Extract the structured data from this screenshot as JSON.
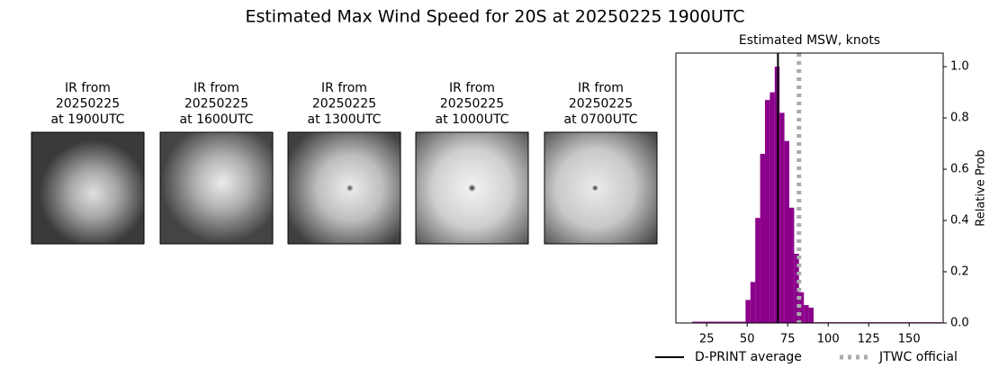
{
  "title": "Estimated Max Wind Speed for 20S at 20250225 1900UTC",
  "panels": [
    {
      "lines": [
        "IR from",
        "20250225",
        "at 1900UTC"
      ]
    },
    {
      "lines": [
        "IR from",
        "20250225",
        "at 1600UTC"
      ]
    },
    {
      "lines": [
        "IR from",
        "20250225",
        "at 1300UTC"
      ]
    },
    {
      "lines": [
        "IR from",
        "20250225",
        "at 1000UTC"
      ]
    },
    {
      "lines": [
        "IR from",
        "20250225",
        "at 0700UTC"
      ]
    }
  ],
  "chart_data": {
    "type": "histogram",
    "title": "Estimated MSW, knots",
    "y_label": "Relative Prob",
    "y_axis_side": "right",
    "color": "#8b008b",
    "bins": [
      16,
      49,
      52,
      55,
      58,
      61,
      64,
      67,
      70,
      73,
      76,
      79,
      82,
      85,
      88,
      91,
      170
    ],
    "values": [
      0.005,
      0.09,
      0.16,
      0.41,
      0.66,
      0.87,
      0.9,
      1.0,
      0.82,
      0.71,
      0.45,
      0.27,
      0.12,
      0.07,
      0.06,
      0.003
    ],
    "xlim": [
      6,
      171
    ],
    "xticks": [
      25,
      50,
      75,
      100,
      125,
      150
    ],
    "ylim": [
      0,
      1.053
    ],
    "yticks": [
      {
        "value": 0,
        "label": "0.0"
      },
      {
        "value": 0.2,
        "label": "0.2"
      },
      {
        "value": 0.4,
        "label": "0.4"
      },
      {
        "value": 0.6,
        "label": "0.6"
      },
      {
        "value": 0.8,
        "label": "0.8"
      },
      {
        "value": 1,
        "label": "1.0"
      }
    ],
    "lines": [
      {
        "name": "D-PRINT average",
        "value": 69,
        "color": "#000000",
        "style": "solid"
      },
      {
        "name": "JTWC official",
        "value": 82,
        "color": "#aaaaaa",
        "style": "dotted"
      }
    ],
    "legend": "bottom"
  }
}
